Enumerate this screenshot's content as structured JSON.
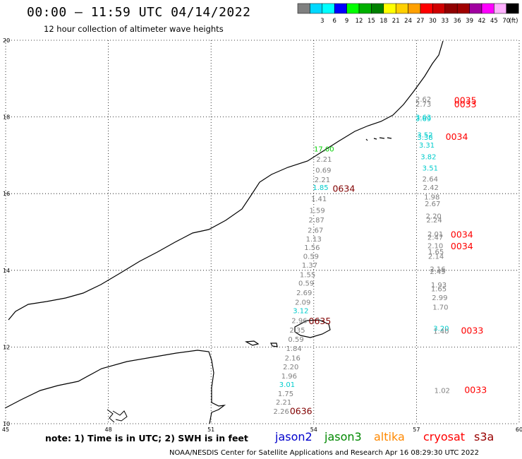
{
  "header": {
    "title": "00:00 – 11:59 UTC 04/14/2022",
    "subtitle": "12 hour collection of altimeter wave heights"
  },
  "color_scale": {
    "unit": "(ft)",
    "bins": [
      {
        "label": "",
        "color": "#808080"
      },
      {
        "label": "3",
        "color": "#00d8ff"
      },
      {
        "label": "6",
        "color": "#00ffff"
      },
      {
        "label": "9",
        "color": "#0000ff"
      },
      {
        "label": "12",
        "color": "#00ff00"
      },
      {
        "label": "15",
        "color": "#00b000"
      },
      {
        "label": "18",
        "color": "#008000"
      },
      {
        "label": "21",
        "color": "#ffff00"
      },
      {
        "label": "24",
        "color": "#ffd000"
      },
      {
        "label": "27",
        "color": "#ffa000"
      },
      {
        "label": "30",
        "color": "#ff0000"
      },
      {
        "label": "33",
        "color": "#d00000"
      },
      {
        "label": "36",
        "color": "#900000"
      },
      {
        "label": "39",
        "color": "#a00000"
      },
      {
        "label": "42",
        "color": "#a000a0"
      },
      {
        "label": "45",
        "color": "#ff00ff"
      },
      {
        "label": "70",
        "color": "#ffb0ff"
      },
      {
        "label": "",
        "color": "#000000"
      }
    ]
  },
  "map": {
    "lon_range": [
      45,
      60
    ],
    "lat_range": [
      10,
      20
    ],
    "lon_ticks": [
      "45",
      "48",
      "51",
      "54",
      "57",
      "60"
    ],
    "lat_ticks": [
      "20",
      "18",
      "16",
      "14",
      "12",
      "10"
    ]
  },
  "passes": [
    {
      "id": "0035",
      "color": "#ff0000",
      "lon": 58.1,
      "lat": 18.35
    },
    {
      "id": "0033",
      "color": "#ff0000",
      "lon": 58.1,
      "lat": 18.25
    },
    {
      "id": "0034",
      "color": "#ff0000",
      "lon": 57.85,
      "lat": 17.4
    },
    {
      "id": "0634",
      "color": "#800000",
      "lon": 54.55,
      "lat": 16.05
    },
    {
      "id": "0034",
      "color": "#ff0000",
      "lon": 58.0,
      "lat": 14.85
    },
    {
      "id": "0034",
      "color": "#ff0000",
      "lon": 58.0,
      "lat": 14.55
    },
    {
      "id": "0635",
      "color": "#800000",
      "lon": 53.85,
      "lat": 12.6
    },
    {
      "id": "0033",
      "color": "#ff0000",
      "lon": 58.3,
      "lat": 12.35
    },
    {
      "id": "0033",
      "color": "#ff0000",
      "lon": 58.4,
      "lat": 10.8
    },
    {
      "id": "0636",
      "color": "#800000",
      "lon": 53.3,
      "lat": 10.25
    }
  ],
  "observations": [
    {
      "v": "2.62",
      "color": "#808080",
      "lon": 57.2,
      "lat": 18.4
    },
    {
      "v": "2.73",
      "color": "#808080",
      "lon": 57.2,
      "lat": 18.27
    },
    {
      "v": "3.63",
      "color": "#00cccc",
      "lon": 57.2,
      "lat": 17.93
    },
    {
      "v": "3.69",
      "color": "#00cccc",
      "lon": 57.2,
      "lat": 17.89
    },
    {
      "v": "3.52",
      "color": "#00cccc",
      "lon": 57.25,
      "lat": 17.47
    },
    {
      "v": "3.38",
      "color": "#00cccc",
      "lon": 57.25,
      "lat": 17.4
    },
    {
      "v": "3.31",
      "color": "#00cccc",
      "lon": 57.3,
      "lat": 17.2
    },
    {
      "v": "3.82",
      "color": "#00cccc",
      "lon": 57.35,
      "lat": 16.9
    },
    {
      "v": "3.51",
      "color": "#00cccc",
      "lon": 57.4,
      "lat": 16.6
    },
    {
      "v": "2.64",
      "color": "#808080",
      "lon": 57.4,
      "lat": 16.32
    },
    {
      "v": "2.42",
      "color": "#808080",
      "lon": 57.42,
      "lat": 16.1
    },
    {
      "v": "1.98",
      "color": "#808080",
      "lon": 57.45,
      "lat": 15.85
    },
    {
      "v": "2.67",
      "color": "#808080",
      "lon": 57.47,
      "lat": 15.67
    },
    {
      "v": "2.20",
      "color": "#808080",
      "lon": 57.5,
      "lat": 15.35
    },
    {
      "v": "2.24",
      "color": "#808080",
      "lon": 57.52,
      "lat": 15.25
    },
    {
      "v": "2.01",
      "color": "#808080",
      "lon": 57.55,
      "lat": 14.88
    },
    {
      "v": "2.47",
      "color": "#808080",
      "lon": 57.55,
      "lat": 14.8
    },
    {
      "v": "2.10",
      "color": "#808080",
      "lon": 57.55,
      "lat": 14.58
    },
    {
      "v": "1.65",
      "color": "#808080",
      "lon": 57.57,
      "lat": 14.42
    },
    {
      "v": "2.14",
      "color": "#808080",
      "lon": 57.57,
      "lat": 14.3
    },
    {
      "v": "2.16",
      "color": "#808080",
      "lon": 57.62,
      "lat": 13.97
    },
    {
      "v": "2.49",
      "color": "#808080",
      "lon": 57.62,
      "lat": 13.9
    },
    {
      "v": "1.93",
      "color": "#808080",
      "lon": 57.65,
      "lat": 13.55
    },
    {
      "v": "1.65",
      "color": "#808080",
      "lon": 57.65,
      "lat": 13.45
    },
    {
      "v": "2.99",
      "color": "#808080",
      "lon": 57.68,
      "lat": 13.22
    },
    {
      "v": "1.70",
      "color": "#808080",
      "lon": 57.7,
      "lat": 12.97
    },
    {
      "v": "3.20",
      "color": "#00cccc",
      "lon": 57.72,
      "lat": 12.42
    },
    {
      "v": "1.40",
      "color": "#808080",
      "lon": 57.72,
      "lat": 12.35
    },
    {
      "v": "1.02",
      "color": "#808080",
      "lon": 57.75,
      "lat": 10.8
    },
    {
      "v": "17.00",
      "color": "#00d000",
      "lon": 54.3,
      "lat": 17.1
    },
    {
      "v": "2.21",
      "color": "#808080",
      "lon": 54.3,
      "lat": 16.83
    },
    {
      "v": "0.69",
      "color": "#808080",
      "lon": 54.28,
      "lat": 16.55
    },
    {
      "v": "2.21",
      "color": "#808080",
      "lon": 54.25,
      "lat": 16.3
    },
    {
      "v": "1.85",
      "color": "#00cccc",
      "lon": 54.2,
      "lat": 16.1
    },
    {
      "v": "1.41",
      "color": "#808080",
      "lon": 54.15,
      "lat": 15.8
    },
    {
      "v": "1.59",
      "color": "#808080",
      "lon": 54.1,
      "lat": 15.5
    },
    {
      "v": "2.87",
      "color": "#808080",
      "lon": 54.08,
      "lat": 15.25
    },
    {
      "v": "2.67",
      "color": "#808080",
      "lon": 54.05,
      "lat": 14.98
    },
    {
      "v": "1.13",
      "color": "#808080",
      "lon": 54.0,
      "lat": 14.75
    },
    {
      "v": "1.56",
      "color": "#808080",
      "lon": 53.95,
      "lat": 14.53
    },
    {
      "v": "0.59",
      "color": "#808080",
      "lon": 53.92,
      "lat": 14.3
    },
    {
      "v": "1.37",
      "color": "#808080",
      "lon": 53.88,
      "lat": 14.07
    },
    {
      "v": "1.55",
      "color": "#808080",
      "lon": 53.82,
      "lat": 13.82
    },
    {
      "v": "0.59",
      "color": "#808080",
      "lon": 53.78,
      "lat": 13.6
    },
    {
      "v": "2.69",
      "color": "#808080",
      "lon": 53.72,
      "lat": 13.35
    },
    {
      "v": "2.09",
      "color": "#808080",
      "lon": 53.68,
      "lat": 13.1
    },
    {
      "v": "3.12",
      "color": "#00cccc",
      "lon": 53.62,
      "lat": 12.88
    },
    {
      "v": "2.96",
      "color": "#808080",
      "lon": 53.58,
      "lat": 12.62
    },
    {
      "v": "2.35",
      "color": "#808080",
      "lon": 53.52,
      "lat": 12.38
    },
    {
      "v": "0.59",
      "color": "#808080",
      "lon": 53.48,
      "lat": 12.14
    },
    {
      "v": "1.84",
      "color": "#808080",
      "lon": 53.42,
      "lat": 11.9
    },
    {
      "v": "2.16",
      "color": "#808080",
      "lon": 53.38,
      "lat": 11.65
    },
    {
      "v": "2.20",
      "color": "#808080",
      "lon": 53.33,
      "lat": 11.42
    },
    {
      "v": "1.96",
      "color": "#808080",
      "lon": 53.28,
      "lat": 11.18
    },
    {
      "v": "3.01",
      "color": "#00cccc",
      "lon": 53.22,
      "lat": 10.96
    },
    {
      "v": "1.75",
      "color": "#808080",
      "lon": 53.18,
      "lat": 10.72
    },
    {
      "v": "2.21",
      "color": "#808080",
      "lon": 53.12,
      "lat": 10.5
    },
    {
      "v": "2.26",
      "color": "#808080",
      "lon": 53.05,
      "lat": 10.26
    }
  ],
  "footer": {
    "note": "note: 1) Time is in UTC; 2) SWH is in feet",
    "credit": "NOAA/NESDIS Center for Satellite Applications and Research    Apr 16 08:29:30 UTC 2022",
    "satellites": [
      {
        "name": "jason2",
        "color": "#0000cc"
      },
      {
        "name": "jason3",
        "color": "#008800"
      },
      {
        "name": "altika",
        "color": "#ff8800"
      },
      {
        "name": "cryosat",
        "color": "#ff0000"
      },
      {
        "name": "s3a",
        "color": "#990000"
      }
    ]
  }
}
